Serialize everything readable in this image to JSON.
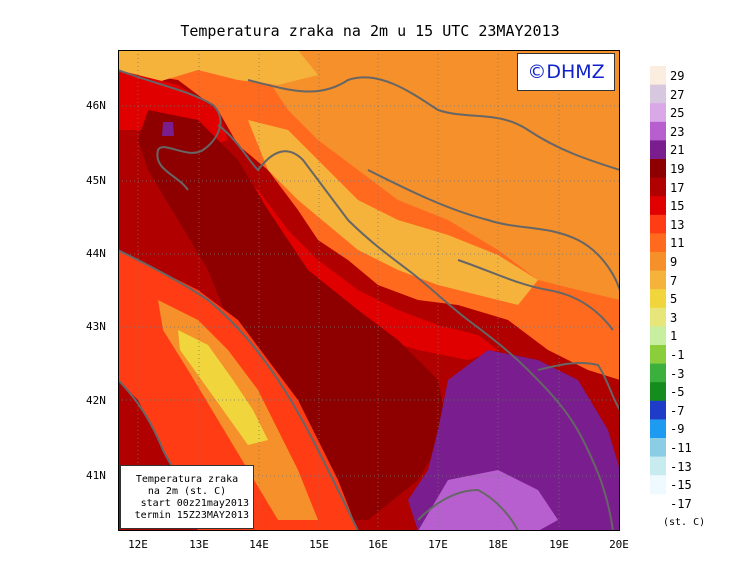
{
  "title": "Temperatura zraka na 2m u 15 UTC 23MAY2013",
  "logo": "©DHMZ",
  "info": {
    "line1": "Temperatura zraka",
    "line2": "na 2m (st. C)",
    "line3": "start 00z21may2013",
    "line4": "termin 15Z23MAY2013"
  },
  "lat_labels": [
    "46N",
    "45N",
    "44N",
    "43N",
    "42N",
    "41N"
  ],
  "lon_labels": [
    "12E",
    "13E",
    "14E",
    "15E",
    "16E",
    "17E",
    "18E",
    "19E",
    "20E"
  ],
  "legend": {
    "unit": "(st. C)",
    "labels": [
      "29",
      "27",
      "25",
      "23",
      "21",
      "19",
      "17",
      "15",
      "13",
      "11",
      "9",
      "7",
      "5",
      "3",
      "1",
      "-1",
      "-3",
      "-5",
      "-7",
      "-9",
      "-11",
      "-13",
      "-15",
      "-17"
    ],
    "colors": [
      "#fbeee0",
      "#d7c8e0",
      "#d9a8e6",
      "#b85fd0",
      "#7a1d8e",
      "#8e0000",
      "#b00000",
      "#e00000",
      "#ff3c14",
      "#ff6a1e",
      "#f5902a",
      "#f5b33c",
      "#f0d63c",
      "#e6e67a",
      "#c8eea0",
      "#8ccd3c",
      "#3cb03c",
      "#148c1e",
      "#1e3cc8",
      "#1e9bf0",
      "#8ccde6",
      "#c8ebf0",
      "#eefaff"
    ]
  }
}
